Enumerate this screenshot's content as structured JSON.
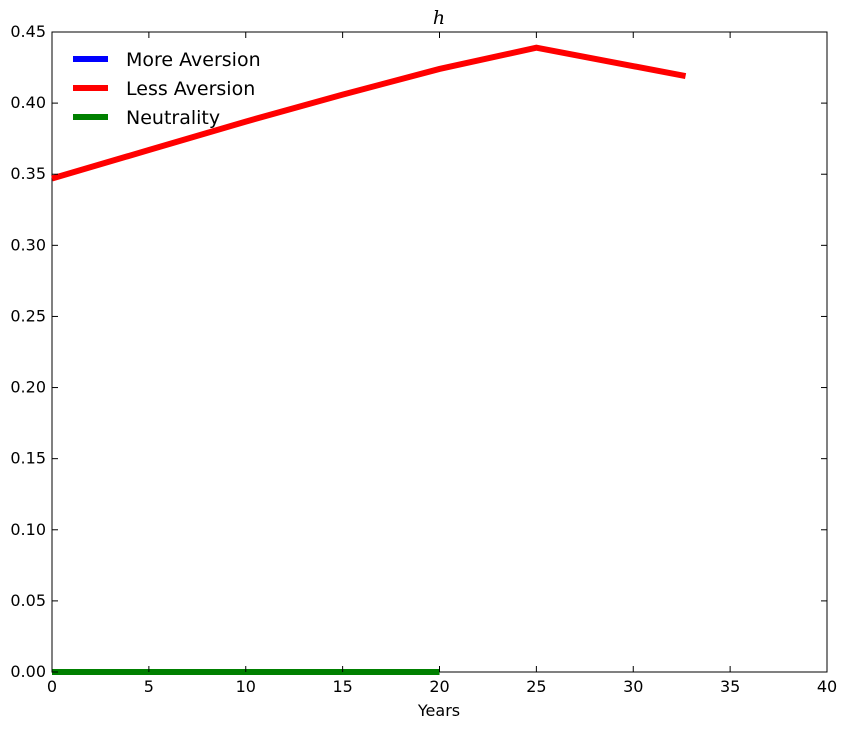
{
  "chart_data": {
    "type": "line",
    "title": "h",
    "xlabel": "Years",
    "ylabel": "",
    "xlim": [
      0,
      40
    ],
    "ylim": [
      0,
      0.45
    ],
    "xticks": [
      "0",
      "5",
      "10",
      "15",
      "20",
      "25",
      "30",
      "35",
      "40"
    ],
    "yticks": [
      "0.00",
      "0.05",
      "0.10",
      "0.15",
      "0.20",
      "0.25",
      "0.30",
      "0.35",
      "0.40",
      "0.45"
    ],
    "grid": false,
    "legend_position": "top-left",
    "series": [
      {
        "name": "More Aversion",
        "color": "#0000ff",
        "x": [],
        "y": []
      },
      {
        "name": "Less Aversion",
        "color": "#ff0000",
        "x": [
          0,
          5,
          10,
          15,
          20,
          25,
          32.7
        ],
        "y": [
          0.347,
          0.367,
          0.387,
          0.406,
          0.424,
          0.439,
          0.419
        ]
      },
      {
        "name": "Neutrality",
        "color": "#008000",
        "x": [
          0,
          5,
          10,
          15,
          20
        ],
        "y": [
          0,
          0,
          0,
          0,
          0
        ]
      }
    ]
  }
}
